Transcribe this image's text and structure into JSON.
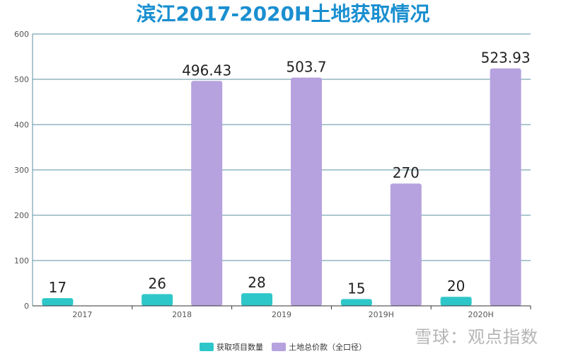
{
  "chart_data": {
    "type": "bar",
    "title": "滨江2017-2020H土地获取情况",
    "categories": [
      "2017",
      "2018",
      "2019",
      "2019H",
      "2020H"
    ],
    "series": [
      {
        "name": "获取项目数量",
        "values": [
          17,
          26,
          28,
          15,
          20
        ],
        "color": "#2ec7c9"
      },
      {
        "name": "土地总价款（全口径）",
        "values": [
          null,
          496.43,
          503.7,
          270,
          523.93
        ],
        "color": "#b6a2de"
      }
    ],
    "data_labels": [
      [
        "17",
        "26",
        "28",
        "15",
        "20"
      ],
      [
        "",
        "496.43",
        "503.7",
        "270",
        "523.93"
      ]
    ],
    "ylim": [
      0,
      600
    ],
    "yticks": [
      0,
      100,
      200,
      300,
      400,
      500,
      600
    ],
    "grid": true,
    "legend_position": "bottom-center"
  },
  "watermark": "雪球：观点指数",
  "colors": {
    "title": "#1a8fd0",
    "grid": "#5b8fa3"
  }
}
